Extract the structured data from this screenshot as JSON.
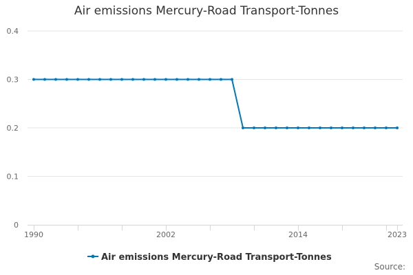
{
  "chart_data": {
    "type": "line",
    "title": "Air emissions Mercury-Road Transport-Tonnes",
    "xlabel": "",
    "ylabel": "",
    "x": [
      1990,
      1991,
      1992,
      1993,
      1994,
      1995,
      1996,
      1997,
      1998,
      1999,
      2000,
      2001,
      2002,
      2003,
      2004,
      2005,
      2006,
      2007,
      2008,
      2009,
      2010,
      2011,
      2012,
      2013,
      2014,
      2015,
      2016,
      2017,
      2018,
      2019,
      2020,
      2021,
      2022,
      2023
    ],
    "series": [
      {
        "name": "Air emissions Mercury-Road Transport-Tonnes",
        "color": "#0077bb",
        "values": [
          0.3,
          0.3,
          0.3,
          0.3,
          0.3,
          0.3,
          0.3,
          0.3,
          0.3,
          0.3,
          0.3,
          0.3,
          0.3,
          0.3,
          0.3,
          0.3,
          0.3,
          0.3,
          0.3,
          0.2,
          0.2,
          0.2,
          0.2,
          0.2,
          0.2,
          0.2,
          0.2,
          0.2,
          0.2,
          0.2,
          0.2,
          0.2,
          0.2,
          0.2
        ]
      }
    ],
    "xlim": [
      1990,
      2023
    ],
    "ylim": [
      0,
      0.4
    ],
    "yticks": [
      "0",
      "0.1",
      "0.2",
      "0.3",
      "0.4"
    ],
    "xtick_labels": [
      "1990",
      "2002",
      "2014",
      "2023"
    ],
    "grid": true,
    "legend_position": "bottom"
  },
  "source_label": "Source:",
  "colors": {
    "grid": "#e6e6e6",
    "axis": "#ccd6eb",
    "series": "#0077bb"
  }
}
